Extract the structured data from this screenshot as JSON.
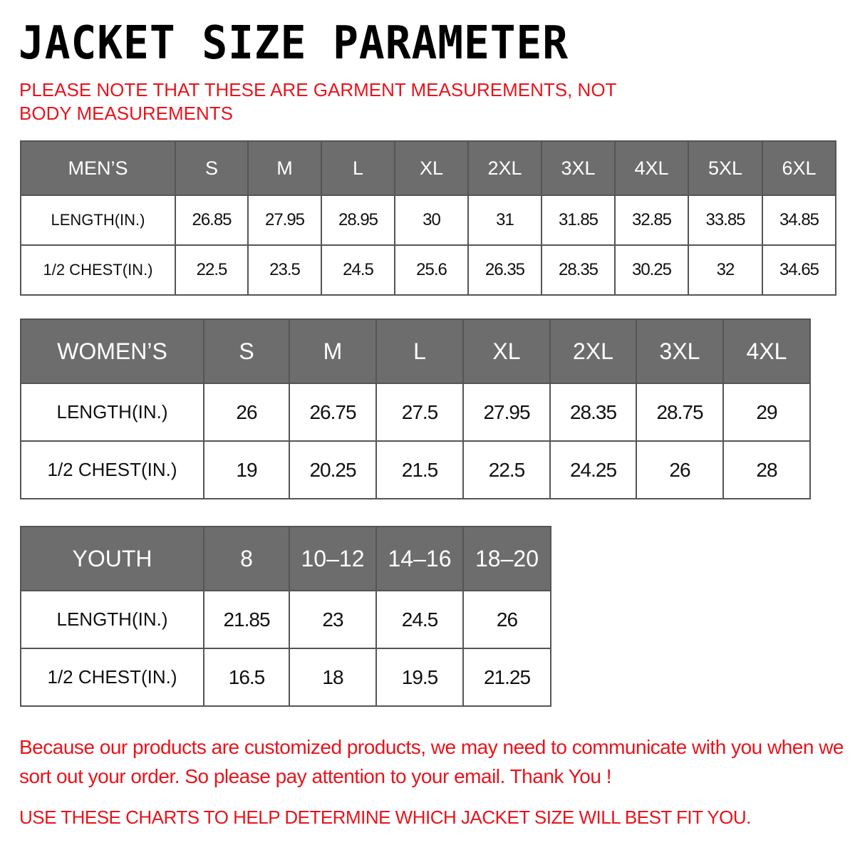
{
  "title": "JACKET  SIZE  PARAMETER",
  "note": "PLEASE NOTE THAT THESE ARE GARMENT MEASUREMENTS, NOT BODY MEASUREMENTS",
  "accent_color": "#e8141c",
  "header_color": "#6d6d6d",
  "tables": {
    "men": {
      "headers": [
        "MEN’S",
        "S",
        "M",
        "L",
        "XL",
        "2XL",
        "3XL",
        "4XL",
        "5XL",
        "6XL"
      ],
      "rows": [
        [
          "LENGTH(IN.)",
          "26.85",
          "27.95",
          "28.95",
          "30",
          "31",
          "31.85",
          "32.85",
          "33.85",
          "34.85"
        ],
        [
          "1/2 CHEST(IN.)",
          "22.5",
          "23.5",
          "24.5",
          "25.6",
          "26.35",
          "28.35",
          "30.25",
          "32",
          "34.65"
        ]
      ]
    },
    "women": {
      "headers": [
        "WOMEN’S",
        "S",
        "M",
        "L",
        "XL",
        "2XL",
        "3XL",
        "4XL"
      ],
      "rows": [
        [
          "LENGTH(IN.)",
          "26",
          "26.75",
          "27.5",
          "27.95",
          "28.35",
          "28.75",
          "29"
        ],
        [
          "1/2 CHEST(IN.)",
          "19",
          "20.25",
          "21.5",
          "22.5",
          "24.25",
          "26",
          "28"
        ]
      ]
    },
    "youth": {
      "headers": [
        "YOUTH",
        "8",
        "10–12",
        "14–16",
        "18–20"
      ],
      "rows": [
        [
          "LENGTH(IN.)",
          "21.85",
          "23",
          "24.5",
          "26"
        ],
        [
          "1/2 CHEST(IN.)",
          "16.5",
          "18",
          "19.5",
          "21.25"
        ]
      ]
    }
  },
  "footer": "Because our products are customized products, we may need to communicate with you when we sort out your order. So please pay attention to your email. Thank You !",
  "footer2": "USE THESE CHARTS TO HELP DETERMINE WHICH JACKET SIZE WILL BEST FIT YOU."
}
